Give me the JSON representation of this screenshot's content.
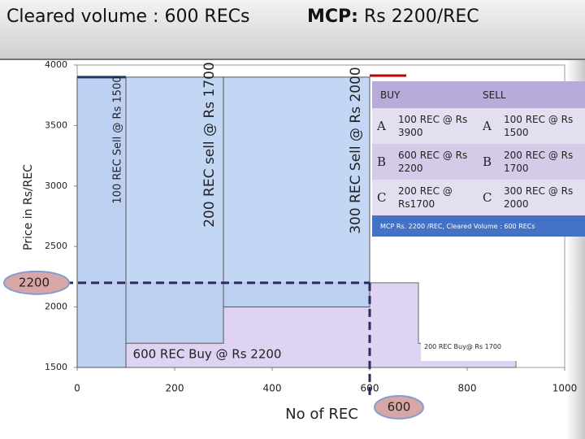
{
  "header": {
    "volume_title": "Cleared volume : 600 RECs",
    "mcp_label": "MCP:",
    "mcp_value": "Rs 2200/REC"
  },
  "chart_data": {
    "type": "step",
    "x_label": "No of REC",
    "y_label": "Price in Rs/REC",
    "xlim": [
      0,
      1000
    ],
    "xticks": [
      0,
      200,
      400,
      600,
      800,
      1000
    ],
    "ylim": [
      1500,
      4000
    ],
    "yticks": [
      1500,
      2000,
      2500,
      3000,
      3500,
      4000
    ],
    "sell": [
      {
        "x0": 0,
        "x1": 100,
        "y0": 1500,
        "y1": 3900
      },
      {
        "x0": 100,
        "x1": 300,
        "y0": 1700,
        "y1": 3900
      },
      {
        "x0": 300,
        "x1": 600,
        "y0": 2000,
        "y1": 3900
      }
    ],
    "sell_color": "#b9cff2",
    "buy": {
      "x": [
        0,
        100,
        100,
        700,
        700,
        900
      ],
      "y": [
        3900,
        3900,
        2200,
        2200,
        1700,
        1700
      ]
    },
    "buy_color": "#ded3f2",
    "mcp": {
      "x": 600,
      "y": 2200
    },
    "annotations": [
      "100 REC Sell @ Rs 1500",
      "200 REC sell @ Rs 1700",
      "300 REC Sell @ Rs 2000",
      "600 REC Buy @ Rs 2200",
      "200  REC  Buy@ Rs 1700"
    ]
  },
  "table": {
    "headers": [
      "BUY",
      "SELL"
    ],
    "rows": [
      [
        "A",
        "100 REC @ Rs 3900",
        "A",
        "100 REC @ Rs 1500"
      ],
      [
        "B",
        "600 REC @ Rs 2200",
        "B",
        "200 REC @ Rs 1700"
      ],
      [
        "C",
        "200 REC @ Rs1700",
        "C",
        "300 REC @ Rs 2000"
      ]
    ],
    "footer": "MCP  Rs. 2200 /REC, Cleared Volume : 600 RECs"
  }
}
